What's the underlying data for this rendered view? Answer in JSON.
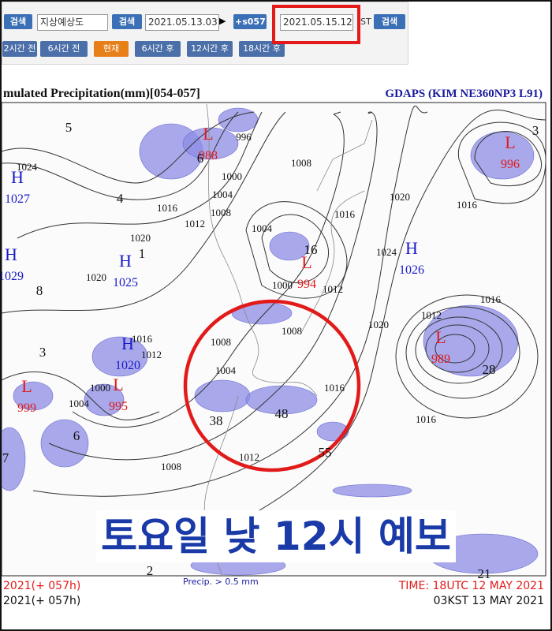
{
  "toolbar": {
    "search_1": "검색",
    "product": "지상예상도",
    "search_2": "검색",
    "base_time": "2021.05.13.03",
    "arrow": "▶",
    "step": "+s057",
    "target_time": "2021.05.15.12",
    "tz": "ST",
    "search_3": "검색"
  },
  "nav": [
    "2시간 전",
    "6시간 전",
    "현재",
    "6시간 후",
    "12시간 후",
    "18시간 후"
  ],
  "map": {
    "title": "mulated Precipitation(mm)[054-057]",
    "model": "GDAPS (KIM NE360NP3 L91)",
    "systems": [
      {
        "letter": "L",
        "value": 988
      },
      {
        "letter": "H",
        "value": 1027
      },
      {
        "letter": "H",
        "value": 1029
      },
      {
        "letter": "H",
        "value": 1025
      },
      {
        "letter": "L",
        "value": 994
      },
      {
        "letter": "H",
        "value": 1026
      },
      {
        "letter": "L",
        "value": 996
      },
      {
        "letter": "H",
        "value": 1020
      },
      {
        "letter": "L",
        "value": 989
      },
      {
        "letter": "L",
        "value": 995
      },
      {
        "letter": "L",
        "value": 999
      }
    ],
    "isobar_labels": [
      1024,
      996,
      1000,
      1004,
      1008,
      1012,
      1016,
      1020,
      1020,
      1008,
      1016,
      1004,
      1000,
      1012,
      1008,
      1024,
      1020,
      1016,
      1012,
      1016,
      1016,
      1012,
      1008,
      1004,
      1000,
      1004,
      1016,
      1012,
      1008,
      1016,
      1020
    ],
    "precip_labels": [
      5,
      4,
      1,
      8,
      3,
      6,
      38,
      48,
      55,
      28,
      3,
      16,
      7,
      2,
      21,
      6
    ],
    "footer_left_red": "2021(+ 057h)",
    "footer_left": "2021(+ 057h)",
    "legend": "Precip. > 0.5 mm",
    "time_utc": "TIME: 18UTC 12 MAY 2021",
    "time_kst": "03KST 13 MAY 2021"
  },
  "banner": "토요일 낮 12시 예보"
}
